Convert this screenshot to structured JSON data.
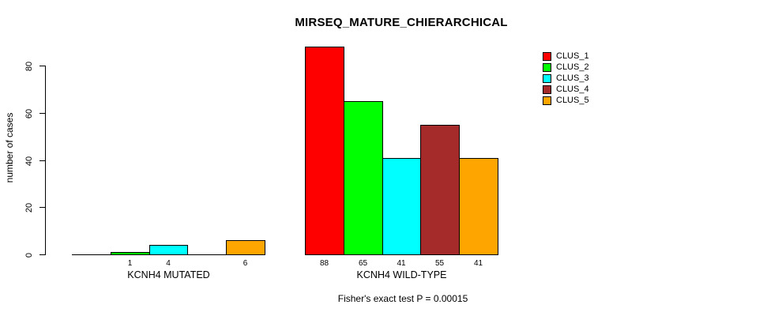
{
  "chart_data": {
    "type": "bar",
    "title": "MIRSEQ_MATURE_CHIERARCHICAL",
    "ylabel": "number of cases",
    "xlabel": "",
    "ylim": [
      0,
      88
    ],
    "yticks": [
      0,
      20,
      40,
      60,
      80
    ],
    "grid": false,
    "legend_position": "top-right",
    "categories": [
      "KCNH4 MUTATED",
      "KCNH4 WILD-TYPE"
    ],
    "series": [
      {
        "name": "CLUS_1",
        "color": "#ff0000",
        "values": [
          0,
          88
        ]
      },
      {
        "name": "CLUS_2",
        "color": "#00ff00",
        "values": [
          1,
          65
        ]
      },
      {
        "name": "CLUS_3",
        "color": "#00ffff",
        "values": [
          4,
          41
        ]
      },
      {
        "name": "CLUS_4",
        "color": "#a52a2a",
        "values": [
          0,
          55
        ]
      },
      {
        "name": "CLUS_5",
        "color": "#ffa500",
        "values": [
          6,
          41
        ]
      }
    ],
    "bar_labels": [
      [
        "",
        "1",
        "4",
        "",
        "6"
      ],
      [
        "88",
        "65",
        "41",
        "55",
        "41"
      ]
    ],
    "annotation": "Fisher's exact test P = 0.00015"
  }
}
